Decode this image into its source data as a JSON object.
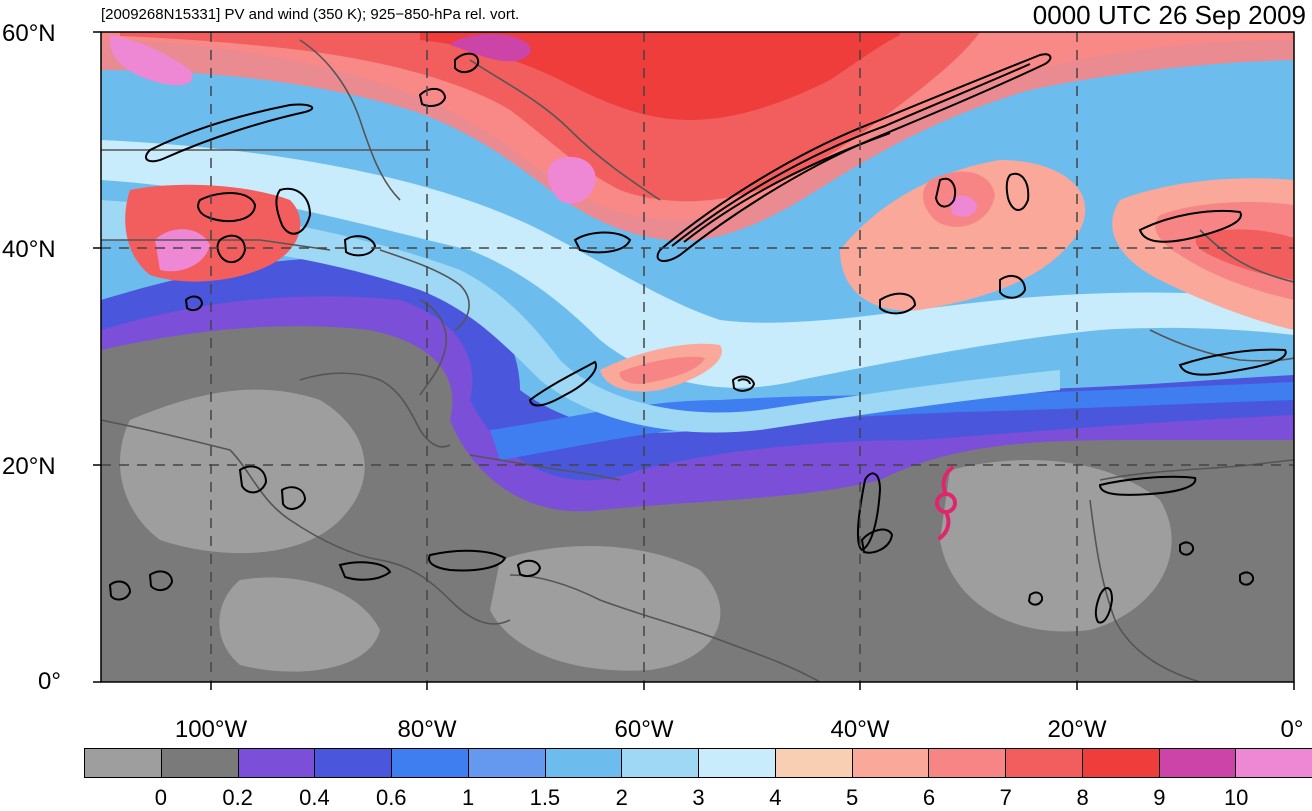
{
  "header": {
    "left_title": "[2009268N15331] PV and wind (350 K); 925−850-hPa rel. vort.",
    "right_title": "0000 UTC 26 Sep 2009"
  },
  "map": {
    "lat_labels": [
      "60°N",
      "40°N",
      "20°N",
      "0°"
    ],
    "lon_labels": [
      "100°W",
      "80°W",
      "60°W",
      "40°W",
      "20°W",
      "0°"
    ],
    "storm_symbol": "tropical-cyclone-icon",
    "storm_color": "#e0246e",
    "contour_color": "#000000",
    "coast_color": "#555555"
  },
  "colorbar": {
    "colors": [
      "#9e9e9e",
      "#7a7a7a",
      "#7b4fd8",
      "#4a56dc",
      "#3f7ef0",
      "#6599f0",
      "#6cbdee",
      "#9fd8f5",
      "#c8ecfb",
      "#f9cfb3",
      "#f9a89a",
      "#f78585",
      "#f25e5e",
      "#ee3d3a",
      "#cc44a8",
      "#ee88d4"
    ],
    "tick_labels": [
      "0",
      "0.2",
      "0.4",
      "0.6",
      "1",
      "1.5",
      "2",
      "3",
      "4",
      "5",
      "6",
      "7",
      "8",
      "9",
      "10"
    ]
  }
}
